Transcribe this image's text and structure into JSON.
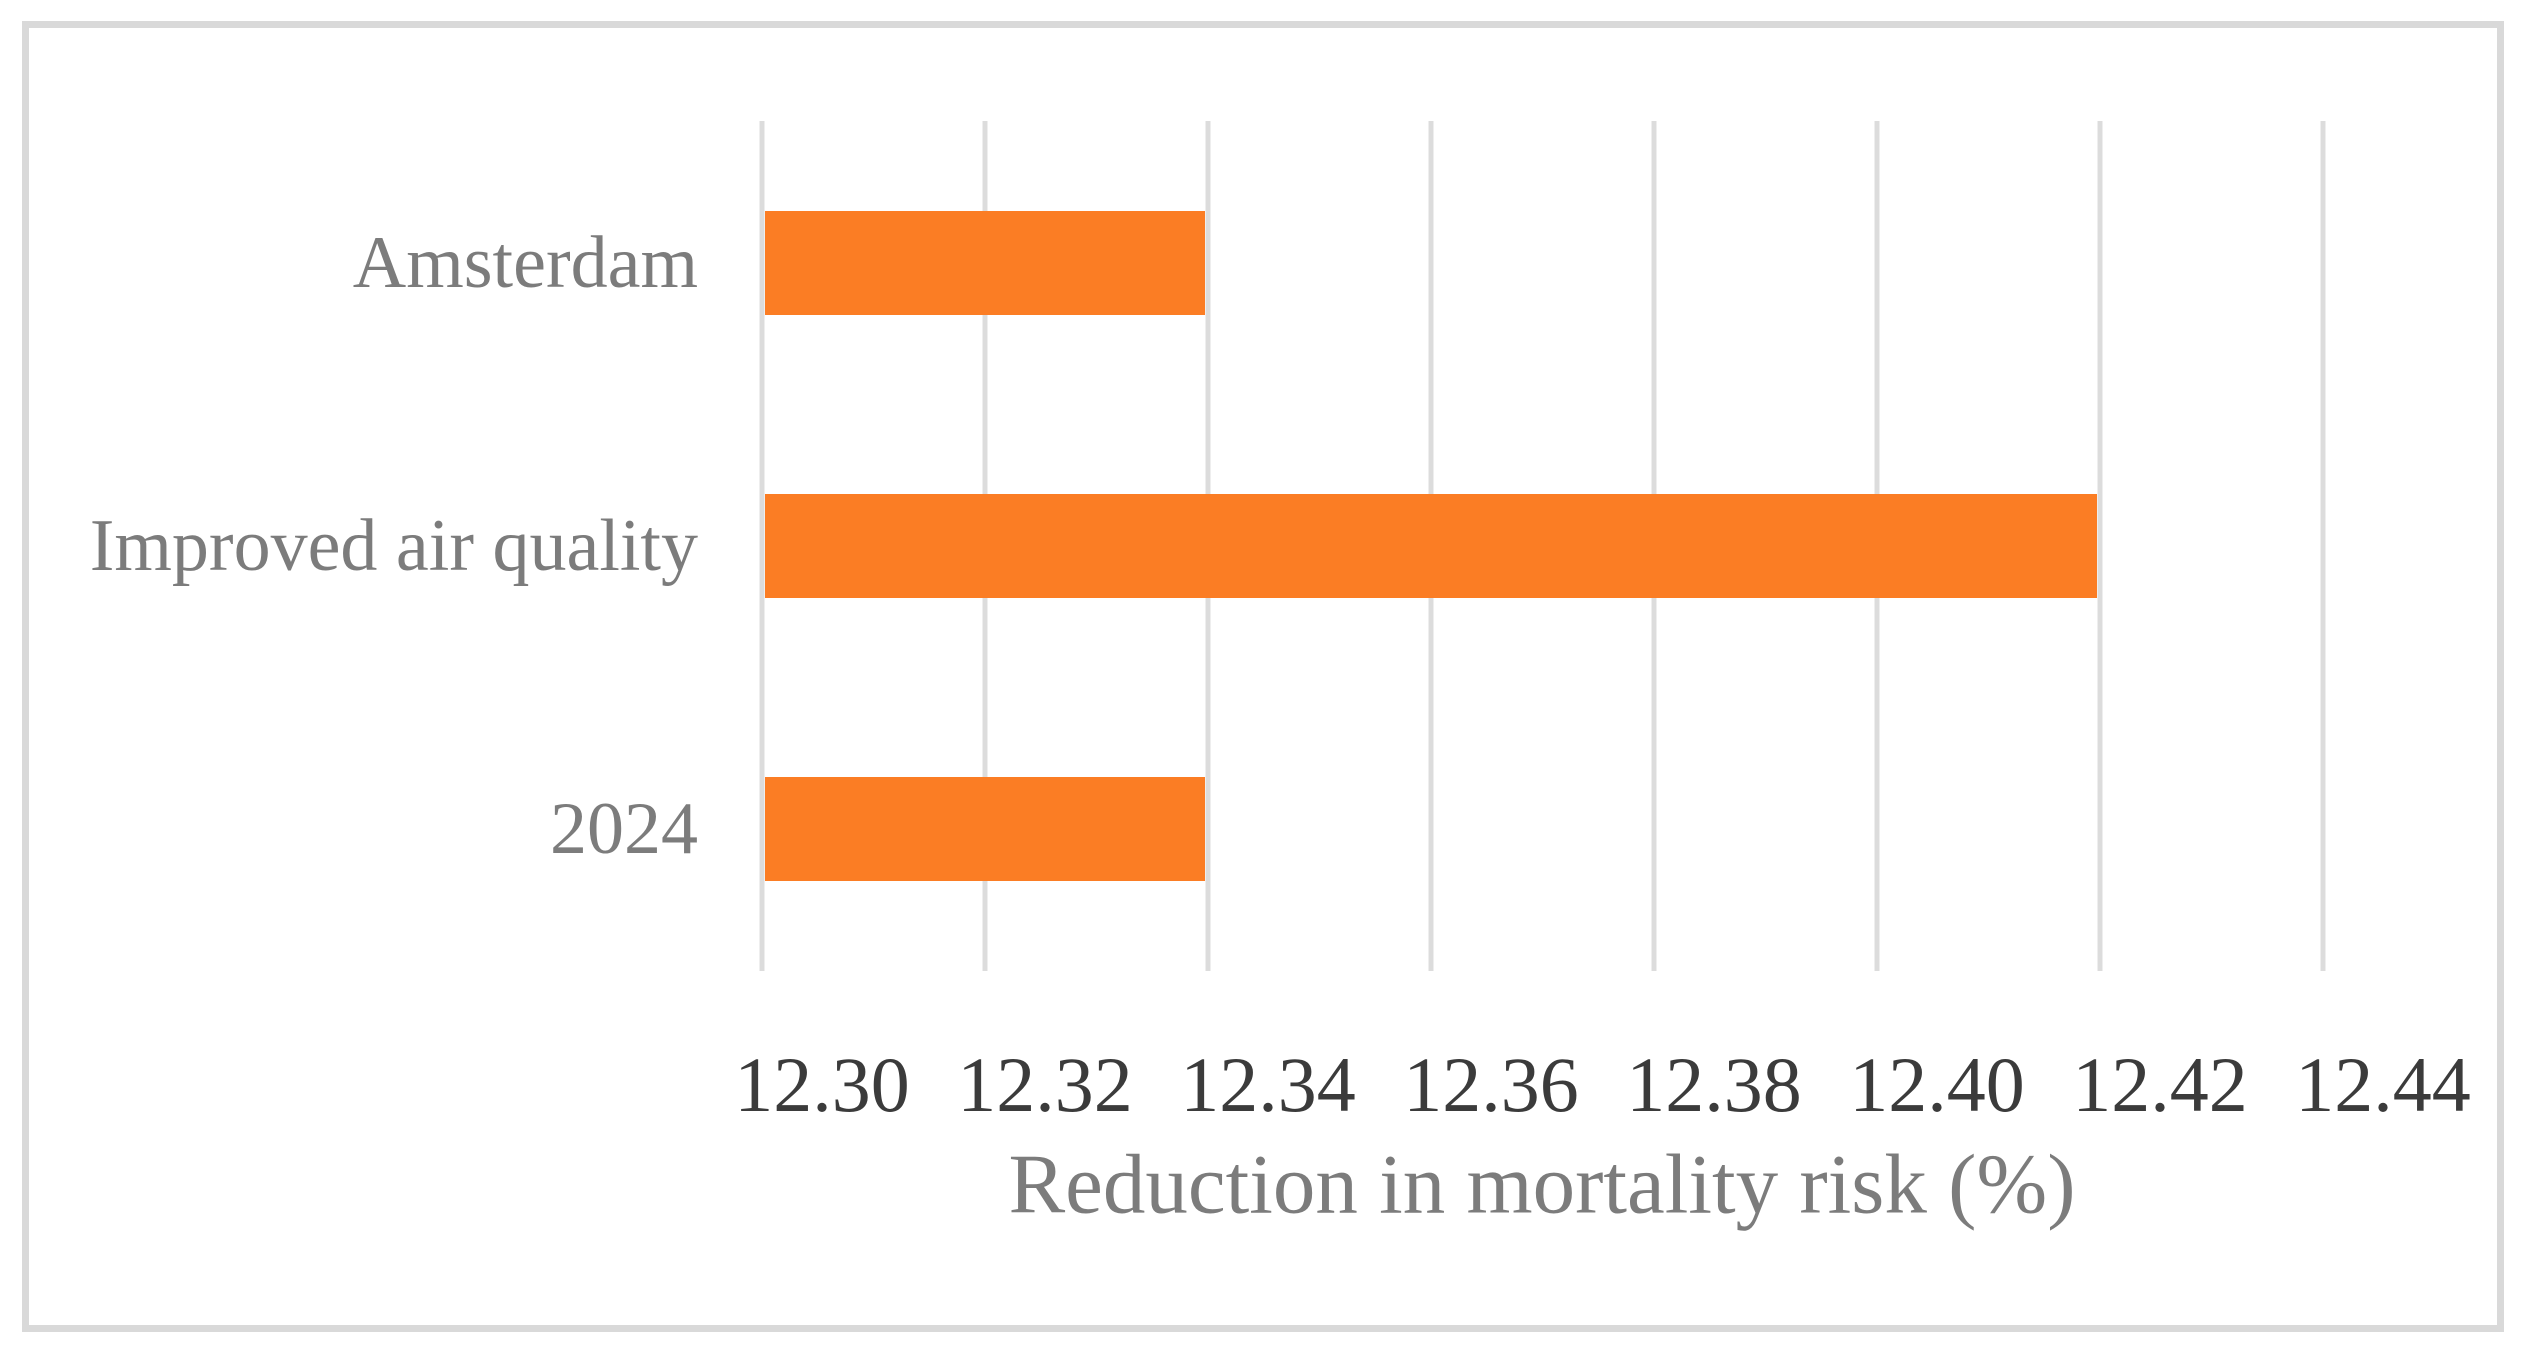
{
  "chart_data": {
    "type": "bar",
    "orientation": "horizontal",
    "title": "",
    "xlabel": "Reduction in mortality risk (%)",
    "ylabel": "",
    "categories": [
      "Amsterdam",
      "Improved air quality",
      "2024"
    ],
    "values": [
      12.34,
      12.42,
      12.34
    ],
    "xlim": [
      12.3,
      12.44
    ],
    "xtick_labels": [
      "12.30",
      "12.32",
      "12.34",
      "12.36",
      "12.38",
      "12.40",
      "12.42",
      "12.44"
    ],
    "grid": "vertical-only",
    "legend_position": "none",
    "colors": {
      "bar": "#FB7D24",
      "gridline": "#DCDCDC",
      "frame_border": "#D9D9D9",
      "tick_text": "#3B3B3B",
      "category_text": "#7C7C7C",
      "axis_title_text": "#7C7C7C",
      "background": "#FFFFFF"
    }
  }
}
